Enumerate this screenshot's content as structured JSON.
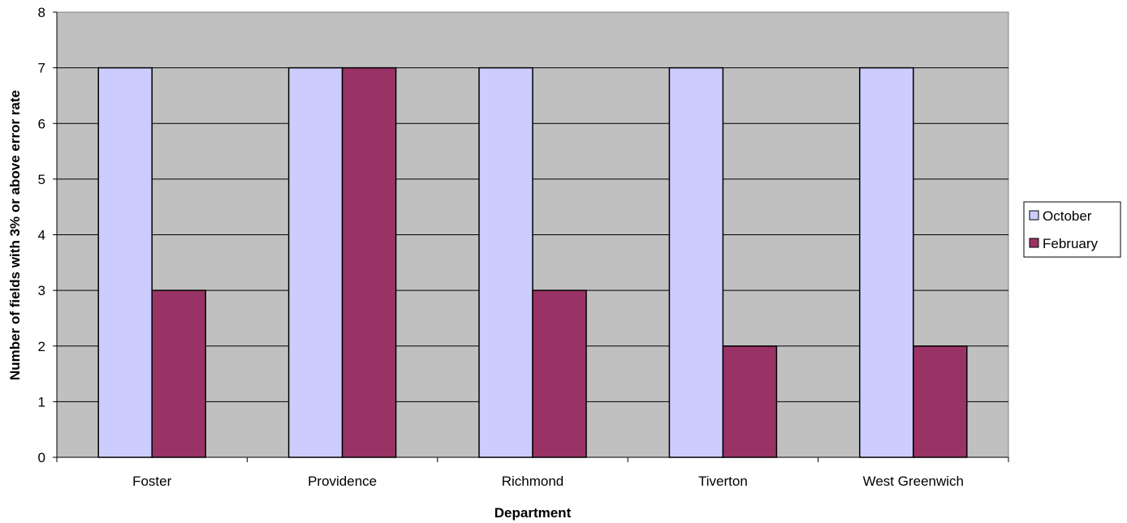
{
  "chart_data": {
    "type": "bar",
    "categories": [
      "Foster",
      "Providence",
      "Richmond",
      "Tiverton",
      "West Greenwich"
    ],
    "series": [
      {
        "name": "October",
        "values": [
          7,
          7,
          7,
          7,
          7
        ],
        "color": "#ccccff"
      },
      {
        "name": "February",
        "values": [
          3,
          7,
          3,
          2,
          2
        ],
        "color": "#993366"
      }
    ],
    "xlabel": "Department",
    "ylabel": "Number of fields with 3% or above error rate",
    "ylim": [
      0,
      8
    ],
    "yticks": [
      "0",
      "1",
      "2",
      "3",
      "4",
      "5",
      "6",
      "7",
      "8"
    ],
    "grid": true,
    "legend_position": "right",
    "plot_background": "#c0c0c0"
  }
}
